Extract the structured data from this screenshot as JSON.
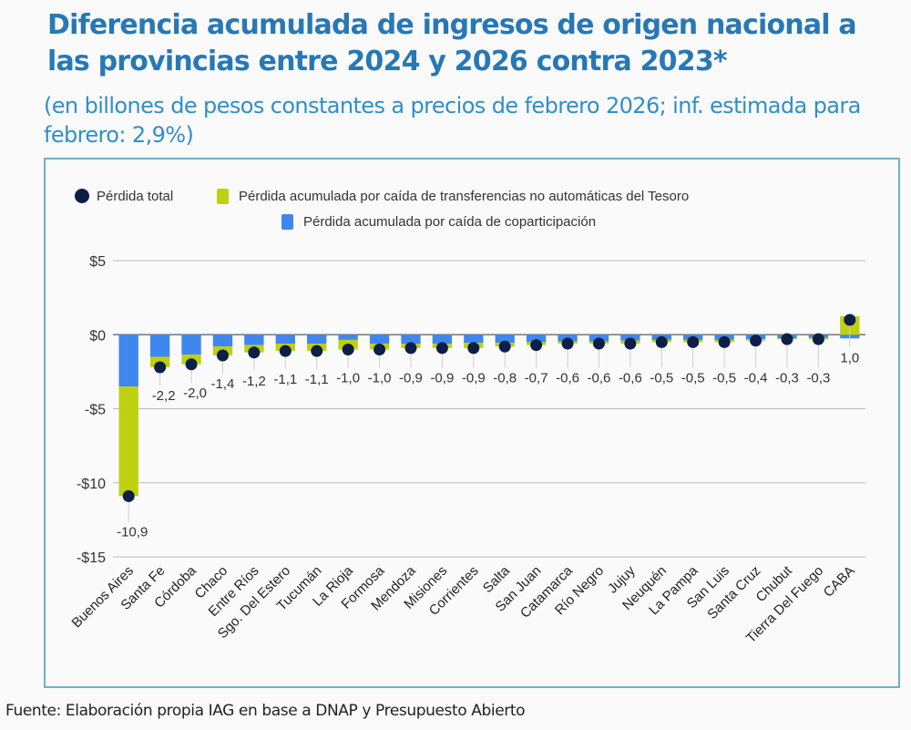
{
  "header": {
    "title": "Diferencia acumulada de ingresos de origen nacional a las provincias entre 2024 y 2026 contra 2023*",
    "subtitle": "(en billones de pesos constantes a precios de febrero 2026; inf. estimada para febrero: 2,9%)"
  },
  "source": "Fuente: Elaboración propia IAG en base a DNAP y Presupuesto Abierto",
  "colors": {
    "total": "#0d1f47",
    "tesoro": "#bfd10e",
    "coparticipacion": "#3f87f0",
    "grid": "#8a8a8a",
    "border": "#6bb3c4"
  },
  "chart_data": {
    "type": "bar",
    "stacked": true,
    "title": "Diferencia acumulada de ingresos de origen nacional a las provincias entre 2024 y 2026 contra 2023*",
    "subtitle": "(en billones de pesos constantes a precios de febrero 2026; inf. estimada para febrero: 2,9%)",
    "xlabel": "",
    "ylabel": "",
    "ylim": [
      -15,
      5
    ],
    "yticks": [
      5,
      0,
      -5,
      -10,
      -15
    ],
    "ytick_labels": [
      "$5",
      "$0",
      "-$5",
      "-$10",
      "-$15"
    ],
    "grid": true,
    "legend_position": "top-center",
    "legend": [
      "Pérdida total",
      "Pérdida acumulada por caída de transferencias no automáticas del Tesoro",
      "Pérdida acumulada por caída de coparticipación"
    ],
    "categories": [
      "Buenos Aires",
      "Santa Fe",
      "Córdoba",
      "Chaco",
      "Entre Ríos",
      "Sgo. Del Estero",
      "Tucumán",
      "La Rioja",
      "Formosa",
      "Mendoza",
      "Misiones",
      "Corrientes",
      "Salta",
      "San Juan",
      "Catamarca",
      "Río Negro",
      "Jujuy",
      "Neuquén",
      "La Pampa",
      "San Luis",
      "Santa Cruz",
      "Chubut",
      "Tierra Del Fuego",
      "CABA"
    ],
    "series": [
      {
        "name": "Pérdida acumulada por caída de coparticipación",
        "kind": "bar",
        "values": [
          -3.5,
          -1.5,
          -1.35,
          -0.8,
          -0.7,
          -0.6,
          -0.6,
          -0.35,
          -0.6,
          -0.6,
          -0.6,
          -0.55,
          -0.55,
          -0.5,
          -0.45,
          -0.45,
          -0.4,
          -0.35,
          -0.35,
          -0.35,
          -0.3,
          -0.25,
          -0.2,
          -0.25
        ]
      },
      {
        "name": "Pérdida acumulada por caída de transferencias no automáticas del Tesoro",
        "kind": "bar",
        "values": [
          -7.4,
          -0.7,
          -0.65,
          -0.6,
          -0.5,
          -0.5,
          -0.5,
          -0.65,
          -0.4,
          -0.3,
          -0.3,
          -0.35,
          -0.25,
          -0.2,
          -0.15,
          -0.15,
          -0.2,
          -0.15,
          -0.15,
          -0.15,
          -0.1,
          -0.05,
          -0.1,
          1.25
        ]
      },
      {
        "name": "Pérdida total",
        "kind": "point",
        "values": [
          -10.9,
          -2.2,
          -2.0,
          -1.4,
          -1.2,
          -1.1,
          -1.1,
          -1.0,
          -1.0,
          -0.9,
          -0.9,
          -0.9,
          -0.8,
          -0.7,
          -0.6,
          -0.6,
          -0.6,
          -0.5,
          -0.5,
          -0.5,
          -0.4,
          -0.3,
          -0.3,
          1.0
        ]
      }
    ],
    "data_labels": [
      "-10,9",
      "-2,2",
      "-2,0",
      "-1,4",
      "-1,2",
      "-1,1",
      "-1,1",
      "-1,0",
      "-1,0",
      "-0,9",
      "-0,9",
      "-0,9",
      "-0,8",
      "-0,7",
      "-0,6",
      "-0,6",
      "-0,6",
      "-0,5",
      "-0,5",
      "-0,5",
      "-0,4",
      "-0,3",
      "-0,3",
      "1,0"
    ]
  }
}
